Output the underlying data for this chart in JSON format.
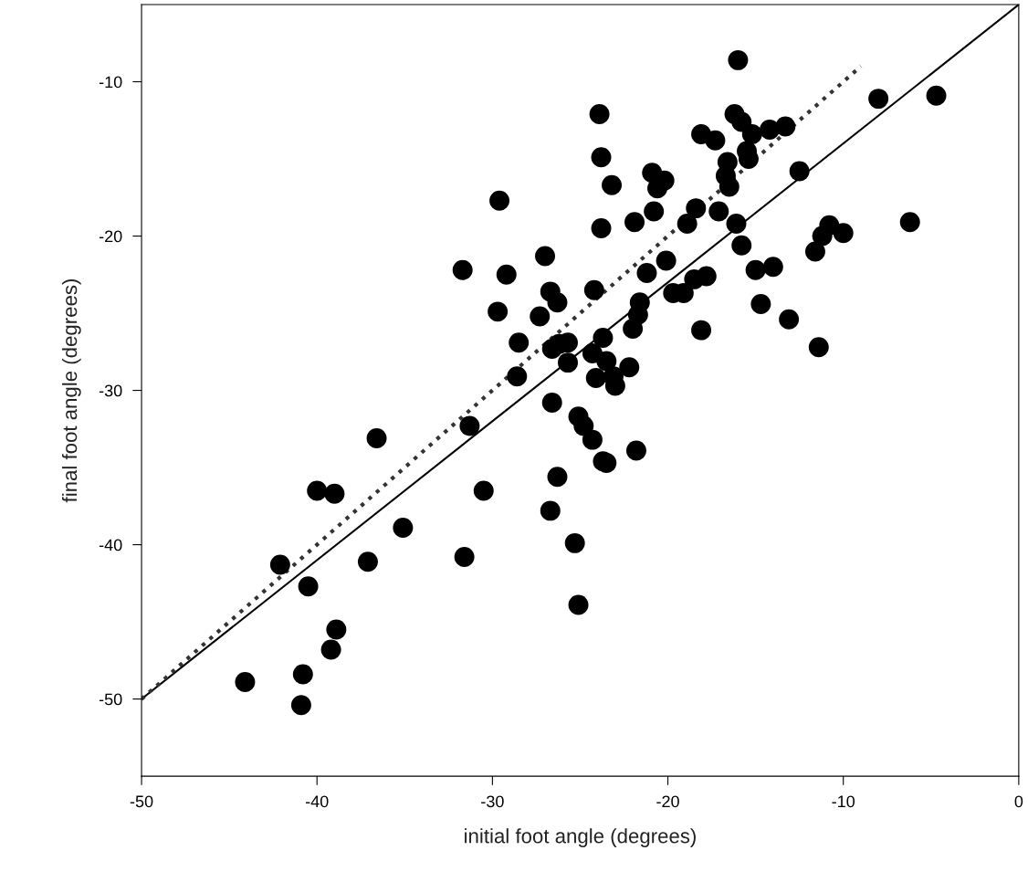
{
  "chart_data": {
    "type": "scatter",
    "xlabel": "initial foot angle (degrees)",
    "ylabel": "final foot angle (degrees)",
    "xlim": [
      -50,
      0
    ],
    "ylim": [
      -55,
      -5
    ],
    "xticks": [
      -50,
      -40,
      -30,
      -20,
      -10,
      0
    ],
    "yticks": [
      -50,
      -40,
      -30,
      -20,
      -10
    ],
    "grid": false,
    "series": [
      {
        "color": "#000000",
        "marker": "circle",
        "x": [
          -4.7,
          -8.0,
          -16.0,
          -23.9,
          -16.2,
          -15.8,
          -13.3,
          -14.2,
          -15.2,
          -18.1,
          -17.3,
          -23.8,
          -15.5,
          -15.4,
          -16.6,
          -16.7,
          -16.5,
          -23.2,
          -20.9,
          -20.2,
          -20.6,
          -12.5,
          -29.6,
          -20.8,
          -21.9,
          -23.8,
          -18.4,
          -18.9,
          -17.1,
          -16.1,
          -15.8,
          -20.1,
          -21.2,
          -27.0,
          -29.2,
          -15.0,
          -14.0,
          -10.8,
          -10.0,
          -11.2,
          -11.6,
          -6.2,
          -18.5,
          -17.8,
          -31.7,
          -24.2,
          -26.7,
          -26.3,
          -29.7,
          -27.3,
          -21.6,
          -21.7,
          -22.0,
          -19.7,
          -19.1,
          -14.7,
          -13.1,
          -11.4,
          -18.1,
          -28.5,
          -26.6,
          -26.2,
          -25.7,
          -23.7,
          -24.3,
          -25.7,
          -23.5,
          -22.2,
          -28.6,
          -24.1,
          -23.1,
          -23.0,
          -31.3,
          -26.6,
          -25.1,
          -24.8,
          -24.3,
          -21.8,
          -23.7,
          -23.5,
          -36.6,
          -40.0,
          -39.0,
          -30.5,
          -26.3,
          -26.7,
          -25.3,
          -25.1,
          -35.1,
          -37.1,
          -31.6,
          -42.1,
          -40.5,
          -38.9,
          -39.2,
          -40.8,
          -44.1,
          -40.9
        ],
        "values": [
          -10.9,
          -11.1,
          -8.6,
          -12.1,
          -12.1,
          -12.6,
          -12.9,
          -13.1,
          -13.4,
          -13.4,
          -13.8,
          -14.9,
          -14.5,
          -15.0,
          -15.2,
          -16.1,
          -16.8,
          -16.7,
          -15.9,
          -16.4,
          -16.9,
          -15.8,
          -17.7,
          -18.4,
          -19.1,
          -19.5,
          -18.2,
          -19.2,
          -18.4,
          -19.2,
          -20.6,
          -21.6,
          -22.4,
          -21.3,
          -22.5,
          -22.2,
          -22.0,
          -19.3,
          -19.8,
          -20.0,
          -21.0,
          -19.1,
          -22.8,
          -22.6,
          -22.2,
          -23.5,
          -23.6,
          -24.3,
          -24.9,
          -25.2,
          -24.3,
          -25.1,
          -26.0,
          -23.7,
          -23.7,
          -24.4,
          -25.4,
          -27.2,
          -26.1,
          -26.9,
          -27.3,
          -27.0,
          -26.9,
          -26.6,
          -27.6,
          -28.2,
          -28.1,
          -28.5,
          -29.1,
          -29.2,
          -29.1,
          -29.7,
          -32.3,
          -30.8,
          -31.7,
          -32.3,
          -33.2,
          -33.9,
          -34.6,
          -34.7,
          -33.1,
          -36.5,
          -36.7,
          -36.5,
          -35.6,
          -37.8,
          -39.9,
          -43.9,
          -38.9,
          -41.1,
          -40.8,
          -41.3,
          -42.7,
          -45.5,
          -46.8,
          -48.4,
          -48.9,
          -50.4
        ]
      },
      {
        "type": "line",
        "color": "#000000",
        "line_style": "solid",
        "marker": "none",
        "x": [
          -50,
          0
        ],
        "values": [
          -50,
          -5
        ]
      },
      {
        "type": "line",
        "color": "#333333",
        "line_style": "dotted",
        "marker": "none",
        "x": [
          -50,
          -9
        ],
        "values": [
          -50,
          -9
        ]
      }
    ]
  }
}
